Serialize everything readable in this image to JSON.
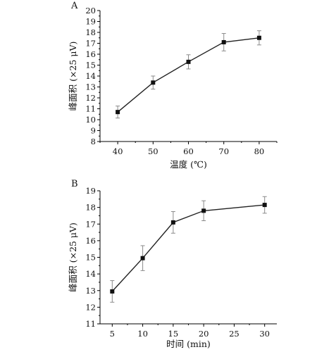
{
  "chart_data": [
    {
      "type": "line",
      "panel_label": "A",
      "title": "",
      "xlabel": "温度 (℃)",
      "ylabel": "峰面积 (×25 μV)",
      "x": [
        40,
        50,
        60,
        70,
        80
      ],
      "series": [
        {
          "values": [
            10.7,
            13.4,
            15.3,
            17.1,
            17.5
          ],
          "errors": [
            0.55,
            0.6,
            0.65,
            0.8,
            0.65
          ]
        }
      ],
      "xlim": [
        35,
        85
      ],
      "ylim": [
        8,
        20
      ],
      "xticks": [
        40,
        50,
        60,
        70,
        80
      ],
      "yticks": [
        8,
        9,
        10,
        11,
        12,
        13,
        14,
        15,
        16,
        17,
        18,
        19,
        20
      ],
      "marker": "square",
      "grid": false,
      "legend": "none"
    },
    {
      "type": "line",
      "panel_label": "B",
      "title": "",
      "xlabel": "时间 (min)",
      "ylabel": "峰面积 (×25 μV)",
      "x": [
        5,
        10,
        15,
        20,
        30
      ],
      "series": [
        {
          "values": [
            12.95,
            14.95,
            17.1,
            17.8,
            18.15
          ],
          "errors": [
            0.65,
            0.75,
            0.65,
            0.6,
            0.5
          ]
        }
      ],
      "xlim": [
        3,
        32
      ],
      "ylim": [
        11,
        19
      ],
      "xticks": [
        5,
        10,
        15,
        20,
        25,
        30
      ],
      "yticks": [
        11,
        12,
        13,
        14,
        15,
        16,
        17,
        18,
        19
      ],
      "marker": "square",
      "grid": false,
      "legend": "none"
    }
  ]
}
